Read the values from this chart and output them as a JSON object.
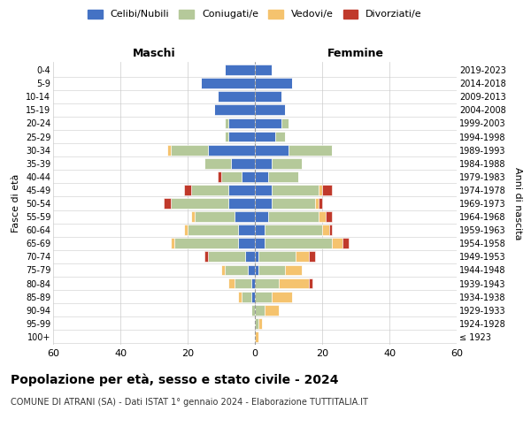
{
  "age_groups": [
    "100+",
    "95-99",
    "90-94",
    "85-89",
    "80-84",
    "75-79",
    "70-74",
    "65-69",
    "60-64",
    "55-59",
    "50-54",
    "45-49",
    "40-44",
    "35-39",
    "30-34",
    "25-29",
    "20-24",
    "15-19",
    "10-14",
    "5-9",
    "0-4"
  ],
  "birth_years": [
    "≤ 1923",
    "1924-1928",
    "1929-1933",
    "1934-1938",
    "1939-1943",
    "1944-1948",
    "1949-1953",
    "1954-1958",
    "1959-1963",
    "1964-1968",
    "1969-1973",
    "1974-1978",
    "1979-1983",
    "1984-1988",
    "1989-1993",
    "1994-1998",
    "1999-2003",
    "2004-2008",
    "2009-2013",
    "2014-2018",
    "2019-2023"
  ],
  "colors": {
    "celibi": "#4472c4",
    "coniugati": "#b5c99a",
    "vedovi": "#f5c36e",
    "divorziati": "#c0392b"
  },
  "males": {
    "celibi": [
      0,
      0,
      0,
      1,
      1,
      2,
      3,
      5,
      5,
      6,
      8,
      8,
      4,
      7,
      14,
      8,
      8,
      12,
      11,
      16,
      9
    ],
    "coniugati": [
      0,
      0,
      1,
      3,
      5,
      7,
      11,
      19,
      15,
      12,
      17,
      11,
      6,
      8,
      11,
      1,
      1,
      0,
      0,
      0,
      0
    ],
    "vedovi": [
      0,
      0,
      0,
      1,
      2,
      1,
      0,
      1,
      1,
      1,
      0,
      0,
      0,
      0,
      1,
      0,
      0,
      0,
      0,
      0,
      0
    ],
    "divorziati": [
      0,
      0,
      0,
      0,
      0,
      0,
      1,
      0,
      0,
      0,
      2,
      2,
      1,
      0,
      0,
      0,
      0,
      0,
      0,
      0,
      0
    ]
  },
  "females": {
    "celibi": [
      0,
      0,
      0,
      0,
      0,
      1,
      1,
      3,
      3,
      4,
      5,
      5,
      4,
      5,
      10,
      6,
      8,
      9,
      8,
      11,
      5
    ],
    "coniugati": [
      0,
      1,
      3,
      5,
      7,
      8,
      11,
      20,
      17,
      15,
      13,
      14,
      9,
      9,
      13,
      3,
      2,
      0,
      0,
      0,
      0
    ],
    "vedovi": [
      1,
      1,
      4,
      6,
      9,
      5,
      4,
      3,
      2,
      2,
      1,
      1,
      0,
      0,
      0,
      0,
      0,
      0,
      0,
      0,
      0
    ],
    "divorziati": [
      0,
      0,
      0,
      0,
      1,
      0,
      2,
      2,
      1,
      2,
      1,
      3,
      0,
      0,
      0,
      0,
      0,
      0,
      0,
      0,
      0
    ]
  },
  "xlim": 60,
  "title_main": "Popolazione per età, sesso e stato civile - 2024",
  "title_sub": "COMUNE DI ATRANI (SA) - Dati ISTAT 1° gennaio 2024 - Elaborazione TUTTITALIA.IT",
  "xlabel_left": "Maschi",
  "xlabel_right": "Femmine",
  "ylabel_left": "Fasce di età",
  "ylabel_right": "Anni di nascita",
  "legend_labels": [
    "Celibi/Nubili",
    "Coniugati/e",
    "Vedovi/e",
    "Divorziati/e"
  ],
  "bg_color": "#ffffff",
  "grid_color": "#cccccc"
}
